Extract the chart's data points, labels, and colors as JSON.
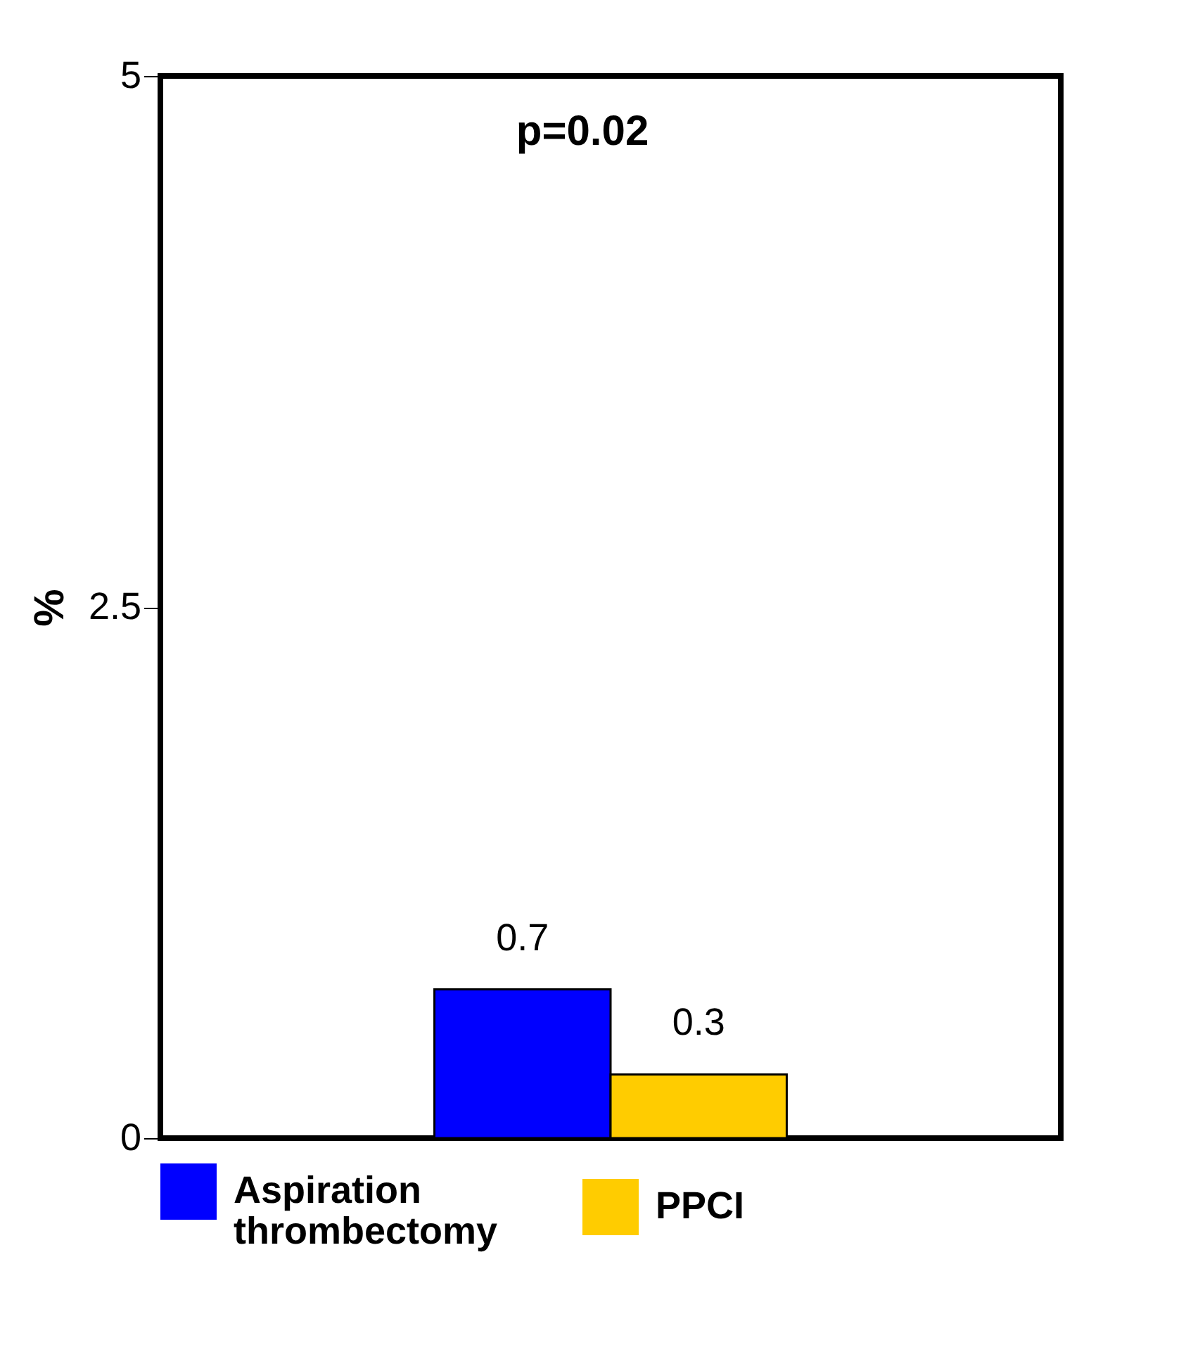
{
  "chart_data": {
    "type": "bar",
    "ylabel": "%",
    "categories": [
      null
    ],
    "series": [
      {
        "name": "Aspiration thrombectomy",
        "color": "#0000ff",
        "values": [
          0.7
        ]
      },
      {
        "name": "PPCI",
        "color": "#ffcc00",
        "values": [
          0.3
        ]
      }
    ],
    "ylim": [
      0,
      5
    ],
    "yticks": [
      0,
      2.5,
      5
    ],
    "data_labels": true,
    "annotations": [
      "p=0.02"
    ],
    "legend": "bottom",
    "grid": false,
    "tick_labels": "y"
  }
}
